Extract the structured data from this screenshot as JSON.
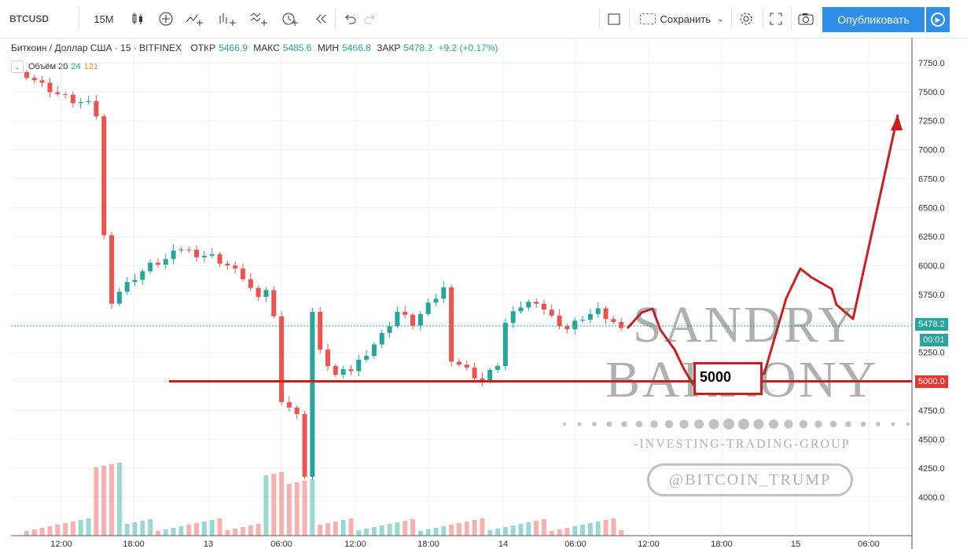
{
  "toolbar": {
    "symbol": "BTCUSD",
    "interval": "15M",
    "save_label": "Сохранить",
    "publish_label": "Опубликовать",
    "icons": [
      "candles-icon",
      "add-indicator-icon",
      "compare-icon",
      "indicators-icon",
      "templates-icon",
      "alert-icon",
      "replay-icon",
      "undo-icon",
      "redo-icon",
      "layout-icon",
      "settings-icon",
      "fullscreen-icon",
      "snapshot-icon",
      "play-icon"
    ]
  },
  "legend": {
    "title": "Биткоин / Доллар США · 15 · BITFINEX",
    "open_label": "ОТКР",
    "open": "5466.9",
    "high_label": "МАКС",
    "high": "5485.6",
    "low_label": "МИН",
    "low": "5466.8",
    "close_label": "ЗАКР",
    "close": "5478.2",
    "change": "+9.2 (+0.17%)"
  },
  "volume_legend": {
    "label": "Объём 20",
    "v1": "24",
    "v2": "121"
  },
  "chart_data": {
    "type": "candlestick",
    "y_ticks": [
      "7750.0",
      "7500.0",
      "7250.0",
      "7000.0",
      "6750.0",
      "6500.0",
      "6250.0",
      "6000.0",
      "5750.0",
      "5500.0",
      "5250.0",
      "5000.0",
      "4750.0",
      "4500.0",
      "4250.0",
      "4000.0"
    ],
    "x_ticks": [
      "12:00",
      "18:00",
      "13",
      "06:00",
      "12:00",
      "18:00",
      "14",
      "06:00",
      "12:00",
      "18:00",
      "15",
      "06:00"
    ],
    "ylim": [
      3900,
      7900
    ],
    "last_price": 5478.2,
    "level": 5000.0,
    "countdown": "00:01",
    "price_path": [
      [
        0,
        7650
      ],
      [
        2,
        7560
      ],
      [
        4,
        7480
      ],
      [
        6,
        7420
      ],
      [
        8,
        7390
      ],
      [
        9,
        7300
      ],
      [
        10,
        6250
      ],
      [
        11,
        5700
      ],
      [
        12,
        5780
      ],
      [
        14,
        5900
      ],
      [
        16,
        6000
      ],
      [
        18,
        6050
      ],
      [
        20,
        6150
      ],
      [
        22,
        6100
      ],
      [
        24,
        6080
      ],
      [
        26,
        6000
      ],
      [
        28,
        5900
      ],
      [
        30,
        5700
      ],
      [
        31,
        5800
      ],
      [
        32,
        5550
      ],
      [
        33,
        4850
      ],
      [
        34,
        4780
      ],
      [
        35,
        4700
      ],
      [
        36,
        4200
      ],
      [
        37,
        5600
      ],
      [
        38,
        5250
      ],
      [
        40,
        5050
      ],
      [
        42,
        5100
      ],
      [
        44,
        5250
      ],
      [
        46,
        5400
      ],
      [
        48,
        5600
      ],
      [
        50,
        5500
      ],
      [
        52,
        5650
      ],
      [
        54,
        5800
      ],
      [
        55,
        5200
      ],
      [
        57,
        5100
      ],
      [
        59,
        5000
      ],
      [
        61,
        5150
      ],
      [
        62,
        5500
      ],
      [
        64,
        5650
      ],
      [
        66,
        5700
      ],
      [
        68,
        5550
      ],
      [
        70,
        5450
      ],
      [
        72,
        5550
      ],
      [
        74,
        5600
      ],
      [
        76,
        5500
      ],
      [
        78,
        5480
      ]
    ],
    "projection": [
      [
        798,
        418
      ],
      [
        816,
        398
      ],
      [
        830,
        393
      ],
      [
        840,
        420
      ],
      [
        858,
        445
      ],
      [
        870,
        470
      ],
      [
        882,
        490
      ],
      [
        942,
        476
      ],
      [
        972,
        476
      ],
      [
        1000,
        380
      ],
      [
        1018,
        342
      ],
      [
        1032,
        353
      ],
      [
        1058,
        368
      ],
      [
        1064,
        388
      ],
      [
        1085,
        406
      ],
      [
        1142,
        146
      ]
    ]
  },
  "watermark": {
    "line1": "SANDRY",
    "line2": "BARKONY",
    "tagline": "-INVESTING-TRADING-GROUP",
    "handle": "@BITCOIN_TRUMP"
  },
  "annotation": {
    "label": "5000"
  },
  "colors": {
    "up": "#26a69a",
    "down": "#ef5350",
    "line": "#cc1e1e",
    "accent": "#2f8ee6"
  }
}
